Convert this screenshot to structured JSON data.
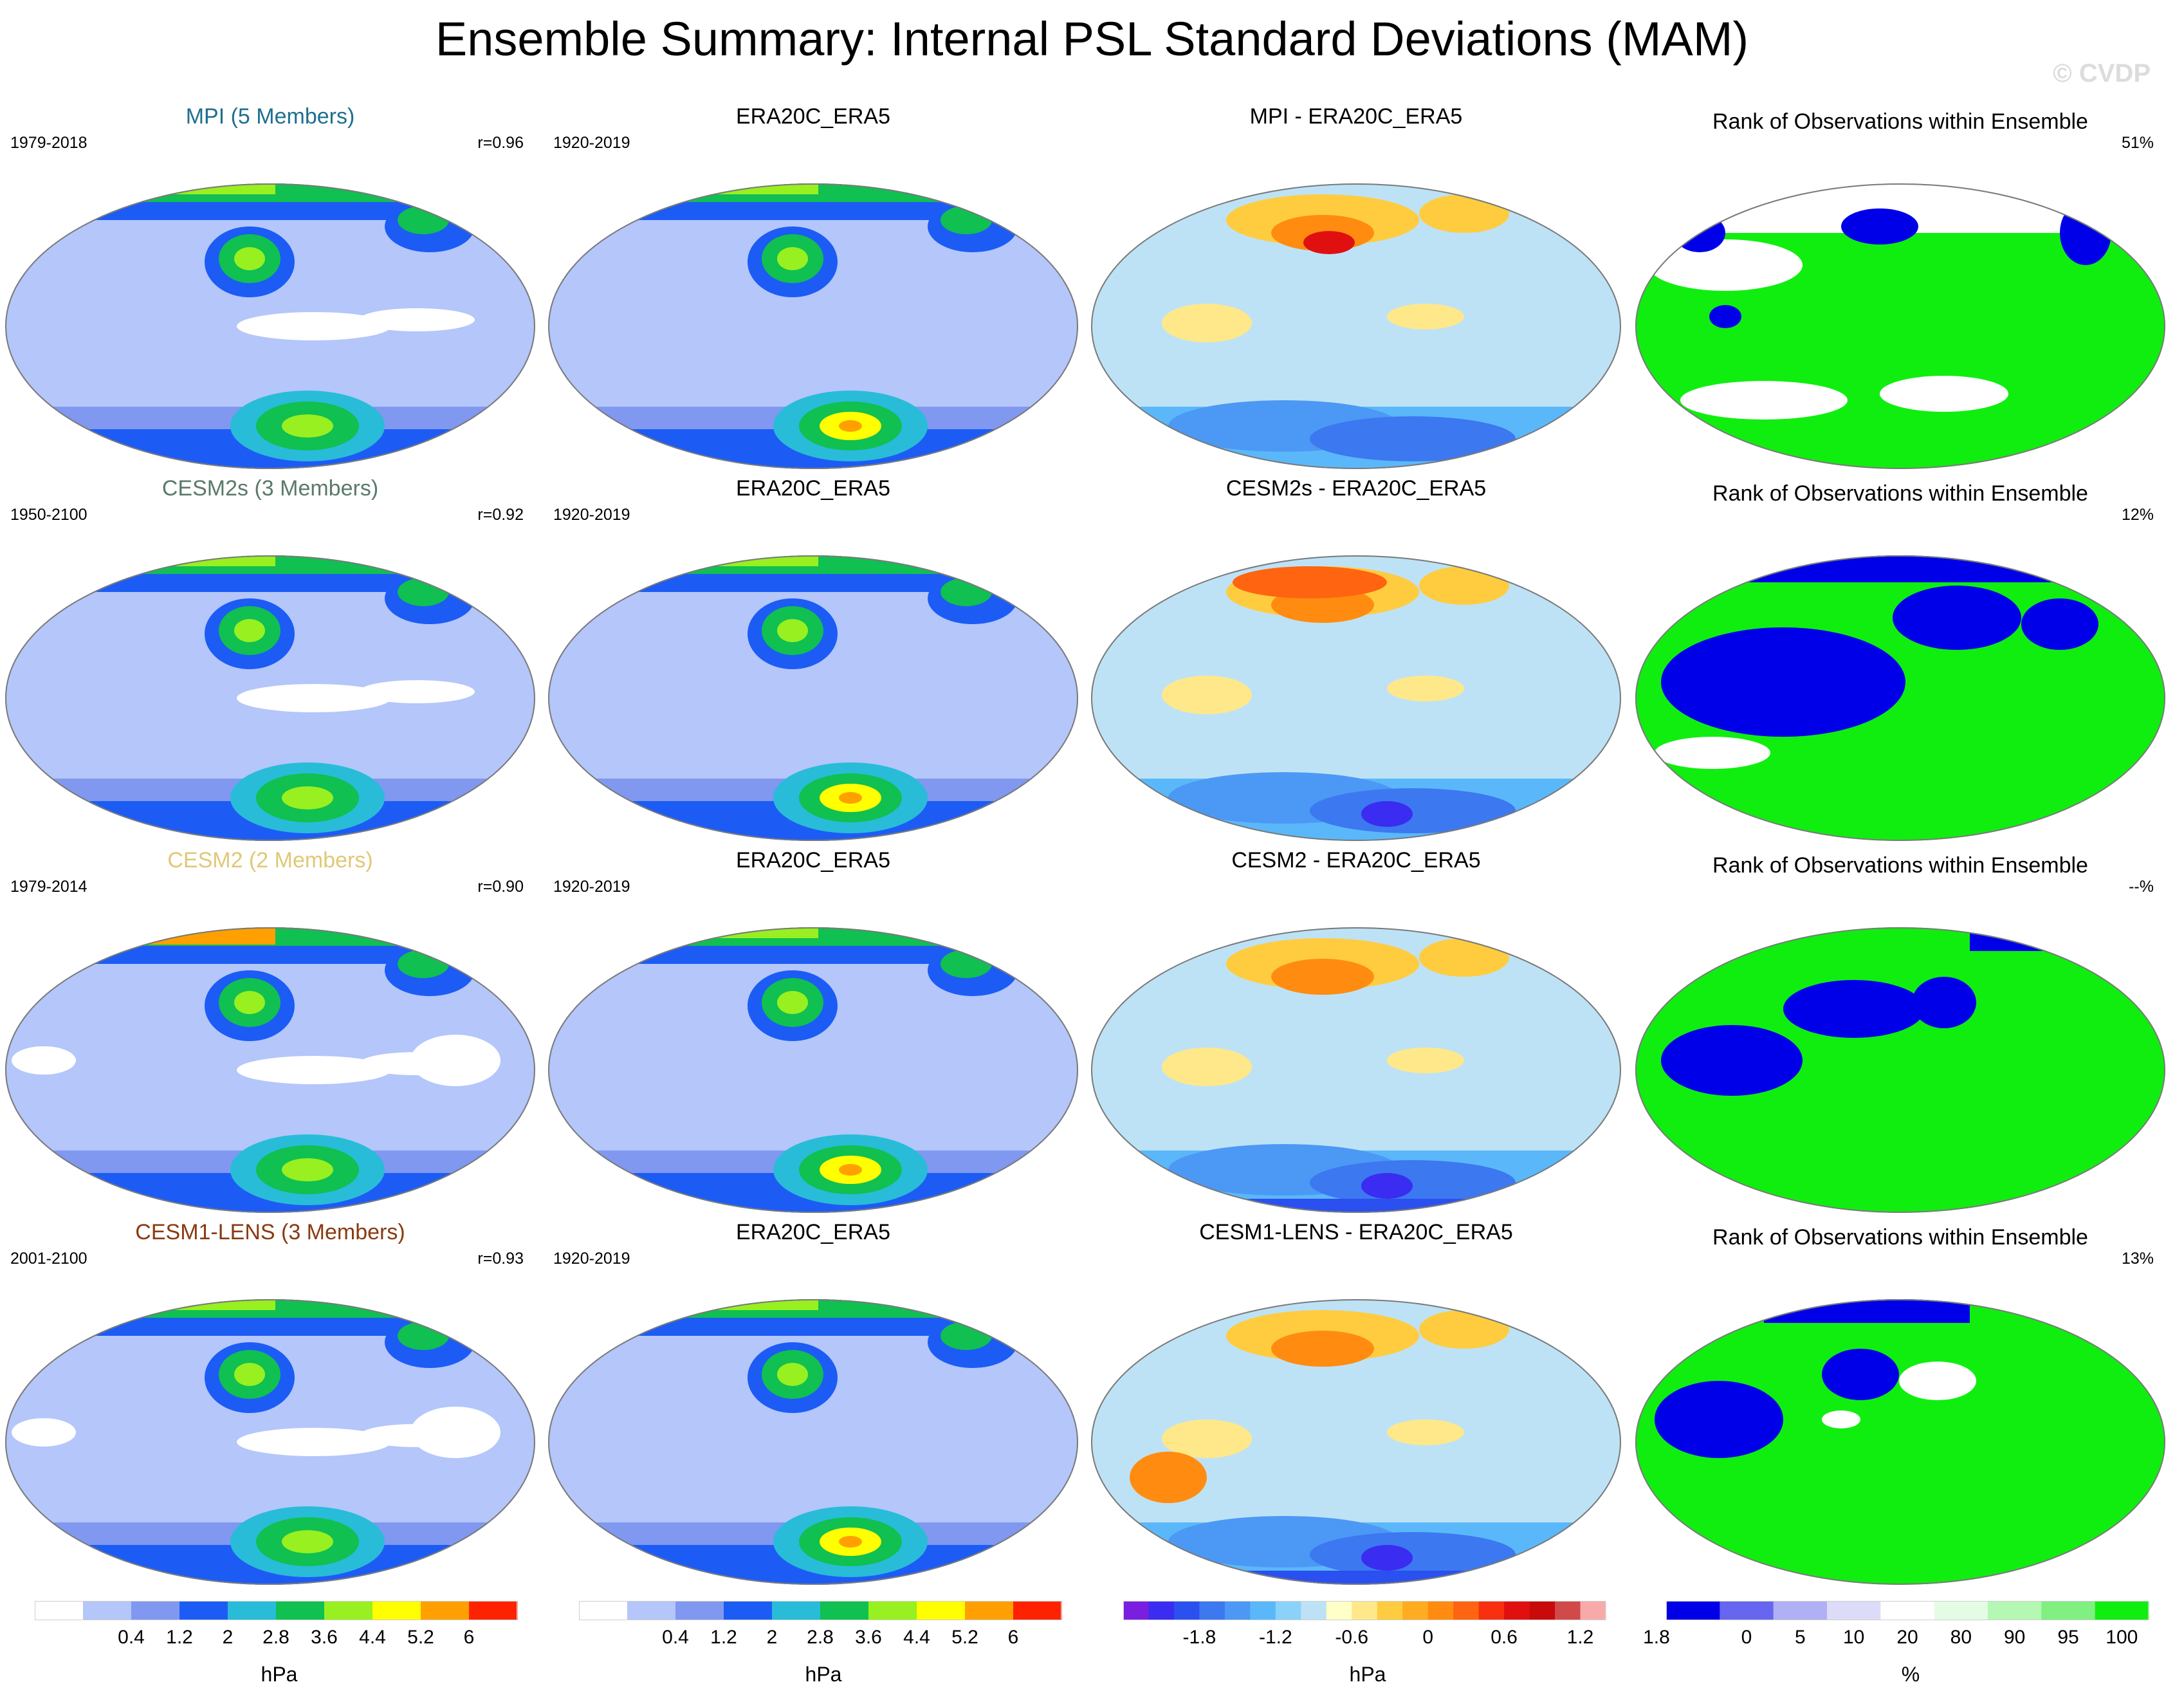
{
  "title": "Ensemble Summary: Internal PSL Standard Deviations (MAM)",
  "watermark": "© CVDP",
  "rows": [
    {
      "model": {
        "title": "MPI (5 Members)",
        "title_color": "#1f6f8f",
        "years": "1979-2018",
        "r": "r=0.96"
      },
      "obs": {
        "title": "ERA20C_ERA5",
        "years": "1920-2019"
      },
      "diff": {
        "title": "MPI - ERA20C_ERA5"
      },
      "rank": {
        "title": "Rank of Observations within Ensemble",
        "pct": "51%"
      }
    },
    {
      "model": {
        "title": "CESM2s (3 Members)",
        "title_color": "#5a7a6a",
        "years": "1950-2100",
        "r": "r=0.92"
      },
      "obs": {
        "title": "ERA20C_ERA5",
        "years": "1920-2019"
      },
      "diff": {
        "title": "CESM2s - ERA20C_ERA5"
      },
      "rank": {
        "title": "Rank of Observations within Ensemble",
        "pct": "12%"
      }
    },
    {
      "model": {
        "title": "CESM2 (2 Members)",
        "title_color": "#e0c878",
        "years": "1979-2014",
        "r": "r=0.90"
      },
      "obs": {
        "title": "ERA20C_ERA5",
        "years": "1920-2019"
      },
      "diff": {
        "title": "CESM2 - ERA20C_ERA5"
      },
      "rank": {
        "title": "Rank of Observations within Ensemble",
        "pct": "--%"
      }
    },
    {
      "model": {
        "title": "CESM1-LENS (3 Members)",
        "title_color": "#8a3a10",
        "years": "2001-2100",
        "r": "r=0.93"
      },
      "obs": {
        "title": "ERA20C_ERA5",
        "years": "1920-2019"
      },
      "diff": {
        "title": "CESM1-LENS - ERA20C_ERA5"
      },
      "rank": {
        "title": "Rank of Observations within Ensemble",
        "pct": "13%"
      }
    }
  ],
  "chart_data": {
    "type": "heatmap",
    "projection": "global map panels, 4 rows x 4 columns",
    "colorbars": [
      {
        "name": "std",
        "unit": "hPa",
        "levels": [
          "0.4",
          "1.2",
          "2",
          "2.8",
          "3.6",
          "4.4",
          "5.2",
          "6"
        ],
        "colors": [
          "#ffffff",
          "#b4c6fa",
          "#8098f0",
          "#1c5cf5",
          "#28bcd8",
          "#10c050",
          "#98f020",
          "#ffff00",
          "#ffa000",
          "#ff2200"
        ]
      },
      {
        "name": "std",
        "unit": "hPa",
        "levels": [
          "0.4",
          "1.2",
          "2",
          "2.8",
          "3.6",
          "4.4",
          "5.2",
          "6"
        ],
        "colors": [
          "#ffffff",
          "#b4c6fa",
          "#8098f0",
          "#1c5cf5",
          "#28bcd8",
          "#10c050",
          "#98f020",
          "#ffff00",
          "#ffa000",
          "#ff2200"
        ]
      },
      {
        "name": "diff",
        "unit": "hPa",
        "levels": [
          "-1.8",
          "-1.2",
          "-0.6",
          "0",
          "0.6",
          "1.2",
          "1.8"
        ],
        "colors": [
          "#7a1ee0",
          "#3a2cf0",
          "#2a50f0",
          "#3c78f0",
          "#4c98f5",
          "#5ab8fa",
          "#8ad2fa",
          "#bee2f5",
          "#ffffc8",
          "#ffe88a",
          "#ffcc40",
          "#ffac20",
          "#ff8c10",
          "#ff6410",
          "#f83010",
          "#e01010",
          "#c80a0a",
          "#d04a4a",
          "#f8aaaa"
        ]
      },
      {
        "name": "rank",
        "unit": "%",
        "levels": [
          "0",
          "5",
          "10",
          "20",
          "80",
          "90",
          "95",
          "100"
        ],
        "colors": [
          "#0000e8",
          "#6666f0",
          "#b0b0f4",
          "#dcdcf8",
          "#ffffff",
          "#e4fce4",
          "#b4f8b4",
          "#80f080",
          "#10ee10"
        ]
      }
    ]
  }
}
